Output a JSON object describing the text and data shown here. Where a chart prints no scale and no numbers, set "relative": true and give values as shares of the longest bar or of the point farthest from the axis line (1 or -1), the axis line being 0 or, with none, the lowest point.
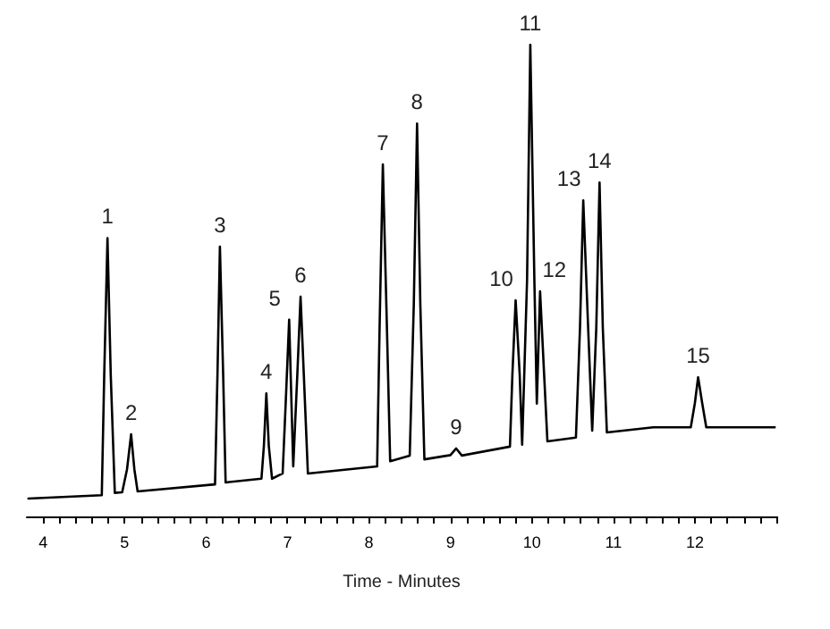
{
  "chart_data": {
    "type": "line",
    "relative": true,
    "xlabel": "Time - Minutes",
    "x": [
      3.82,
      4.72,
      4.75,
      4.79,
      4.83,
      4.88,
      4.97,
      5.03,
      5.08,
      5.12,
      5.16,
      6.11,
      6.14,
      6.17,
      6.21,
      6.24,
      6.68,
      6.71,
      6.74,
      6.77,
      6.81,
      6.94,
      6.98,
      7.02,
      7.07,
      7.12,
      7.16,
      7.2,
      7.25,
      8.1,
      8.13,
      8.17,
      8.22,
      8.26,
      8.5,
      8.55,
      8.59,
      8.63,
      8.68,
      9.0,
      9.07,
      9.14,
      9.73,
      9.76,
      9.8,
      9.85,
      9.88,
      9.94,
      9.98,
      10.03,
      10.06,
      10.1,
      10.15,
      10.19,
      10.54,
      10.59,
      10.63,
      10.69,
      10.74,
      10.79,
      10.83,
      10.87,
      10.92,
      11.49,
      11.66,
      11.95,
      12.0,
      12.04,
      12.09,
      12.14,
      12.98
    ],
    "series": [
      {
        "color": "#000000",
        "values": [
          0.038,
          0.045,
          0.3,
          0.59,
          0.3,
          0.05,
          0.051,
          0.1,
          0.174,
          0.1,
          0.053,
          0.068,
          0.3,
          0.572,
          0.3,
          0.072,
          0.08,
          0.15,
          0.261,
          0.15,
          0.08,
          0.091,
          0.25,
          0.417,
          0.106,
          0.3,
          0.466,
          0.3,
          0.091,
          0.106,
          0.4,
          0.746,
          0.4,
          0.117,
          0.129,
          0.45,
          0.833,
          0.45,
          0.121,
          0.13,
          0.144,
          0.129,
          0.148,
          0.3,
          0.458,
          0.3,
          0.152,
          0.5,
          1,
          0.5,
          0.239,
          0.477,
          0.3,
          0.159,
          0.167,
          0.4,
          0.67,
          0.4,
          0.182,
          0.4,
          0.708,
          0.4,
          0.178,
          0.189,
          0.189,
          0.189,
          0.24,
          0.295,
          0.24,
          0.189,
          0.189
        ]
      }
    ],
    "xlim": [
      3.8,
      13
    ],
    "xticks": [
      4,
      {
        "value": 4.2,
        "label": null
      },
      {
        "value": 4.4,
        "label": null
      },
      {
        "value": 4.6,
        "label": null
      },
      {
        "value": 4.8,
        "label": null
      },
      5,
      {
        "value": 5.2,
        "label": null
      },
      {
        "value": 5.4,
        "label": null
      },
      {
        "value": 5.6,
        "label": null
      },
      {
        "value": 5.8,
        "label": null
      },
      6,
      {
        "value": 6.2,
        "label": null
      },
      {
        "value": 6.4,
        "label": null
      },
      {
        "value": 6.6,
        "label": null
      },
      {
        "value": 6.8,
        "label": null
      },
      7,
      {
        "value": 7.2,
        "label": null
      },
      {
        "value": 7.4,
        "label": null
      },
      {
        "value": 7.6,
        "label": null
      },
      {
        "value": 7.8,
        "label": null
      },
      8,
      {
        "value": 8.2,
        "label": null
      },
      {
        "value": 8.4,
        "label": null
      },
      {
        "value": 8.6,
        "label": null
      },
      {
        "value": 8.8,
        "label": null
      },
      9,
      {
        "value": 9.2,
        "label": null
      },
      {
        "value": 9.4,
        "label": null
      },
      {
        "value": 9.6,
        "label": null
      },
      {
        "value": 9.8,
        "label": null
      },
      10,
      {
        "value": 10.2,
        "label": null
      },
      {
        "value": 10.4,
        "label": null
      },
      {
        "value": 10.6,
        "label": null
      },
      {
        "value": 10.8,
        "label": null
      },
      11,
      {
        "value": 11.2,
        "label": null
      },
      {
        "value": 11.4,
        "label": null
      },
      {
        "value": 11.6,
        "label": null
      },
      {
        "value": 11.8,
        "label": null
      },
      12,
      {
        "value": 12.2,
        "label": null
      },
      {
        "value": 12.4,
        "label": null
      },
      {
        "value": 12.6,
        "label": null
      },
      {
        "value": 12.8,
        "label": null
      },
      {
        "value": 13,
        "label": null
      }
    ],
    "annotations": [
      {
        "text": "1",
        "x": 4.79,
        "y": 0.59
      },
      {
        "text": "2",
        "x": 5.08,
        "y": 0.174
      },
      {
        "text": "3",
        "x": 6.17,
        "y": 0.572
      },
      {
        "text": "4",
        "x": 6.74,
        "y": 0.261
      },
      {
        "text": "5",
        "x": 7.02,
        "y": 0.417
      },
      {
        "text": "6",
        "x": 7.16,
        "y": 0.466
      },
      {
        "text": "7",
        "x": 8.17,
        "y": 0.746
      },
      {
        "text": "8",
        "x": 8.59,
        "y": 0.833
      },
      {
        "text": "9",
        "x": 9.07,
        "y": 0.144
      },
      {
        "text": "10",
        "x": 9.8,
        "y": 0.458
      },
      {
        "text": "11",
        "x": 9.98,
        "y": 1
      },
      {
        "text": "12",
        "x": 10.1,
        "y": 0.477
      },
      {
        "text": "13",
        "x": 10.63,
        "y": 0.67
      },
      {
        "text": "14",
        "x": 10.83,
        "y": 0.708
      },
      {
        "text": "15",
        "x": 12.04,
        "y": 0.295
      }
    ],
    "grid": false,
    "line_style": "solid"
  }
}
